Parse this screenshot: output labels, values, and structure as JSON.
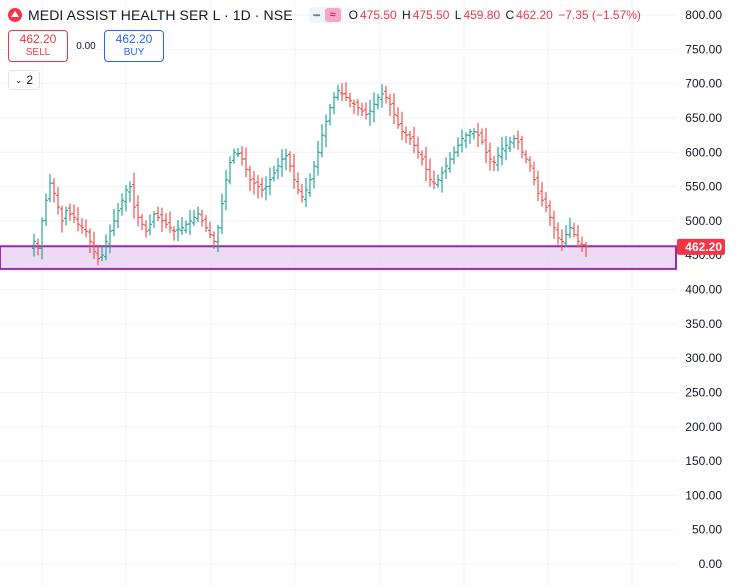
{
  "header": {
    "title": "MEDI ASSIST HEALTH SER L · 1D · NSE",
    "open_label": "O",
    "open": "475.50",
    "high_label": "H",
    "high": "475.50",
    "low_label": "L",
    "low": "459.80",
    "close_label": "C",
    "close": "462.20",
    "change": "−7.35 (−1.57%)"
  },
  "trade": {
    "sell_price": "462.20",
    "sell_label": "SELL",
    "spread": "0.00",
    "buy_price": "462.20",
    "buy_label": "BUY"
  },
  "indicators_toggle": {
    "count": "2"
  },
  "colors": {
    "up": "#26a69a",
    "down": "#ef5350",
    "zone_border": "#9c27b0",
    "zone_fill": "#e9d5f0",
    "price_tag": "#f23645"
  },
  "chart_data": {
    "type": "ohlc",
    "title": "MEDI ASSIST HEALTH SER L · 1D · NSE",
    "ylim": [
      0,
      800
    ],
    "yticks": [
      "800.00",
      "750.00",
      "700.00",
      "650.00",
      "600.00",
      "550.00",
      "500.00",
      "450.00",
      "400.00",
      "350.00",
      "300.00",
      "250.00",
      "200.00",
      "150.00",
      "100.00",
      "50.00",
      "0.00"
    ],
    "ytick_values": [
      800,
      750,
      700,
      650,
      600,
      550,
      500,
      450,
      400,
      350,
      300,
      250,
      200,
      150,
      100,
      50,
      0
    ],
    "last_price": 462.2,
    "last_price_label": "462.20",
    "zone": {
      "low": 430,
      "high": 463
    },
    "grid": true,
    "close_series": [
      470,
      460,
      500,
      530,
      555,
      540,
      520,
      500,
      515,
      510,
      505,
      495,
      490,
      485,
      470,
      455,
      445,
      450,
      470,
      485,
      500,
      515,
      530,
      545,
      550,
      520,
      505,
      495,
      485,
      495,
      510,
      505,
      500,
      495,
      490,
      485,
      488,
      490,
      495,
      500,
      505,
      510,
      500,
      490,
      480,
      470,
      490,
      525,
      560,
      585,
      600,
      598,
      590,
      575,
      560,
      555,
      550,
      545,
      550,
      560,
      570,
      580,
      590,
      595,
      580,
      560,
      545,
      535,
      545,
      560,
      580,
      600,
      625,
      645,
      665,
      680,
      690,
      685,
      680,
      675,
      670,
      665,
      660,
      655,
      660,
      670,
      680,
      685,
      680,
      670,
      655,
      640,
      630,
      625,
      620,
      610,
      600,
      590,
      575,
      560,
      555,
      560,
      570,
      580,
      590,
      600,
      610,
      620,
      625,
      630,
      630,
      625,
      615,
      600,
      590,
      585,
      595,
      605,
      610,
      615,
      620,
      615,
      600,
      590,
      580,
      560,
      540,
      530,
      520,
      505,
      490,
      475,
      470,
      480,
      490,
      480,
      470,
      465,
      462.2
    ]
  }
}
